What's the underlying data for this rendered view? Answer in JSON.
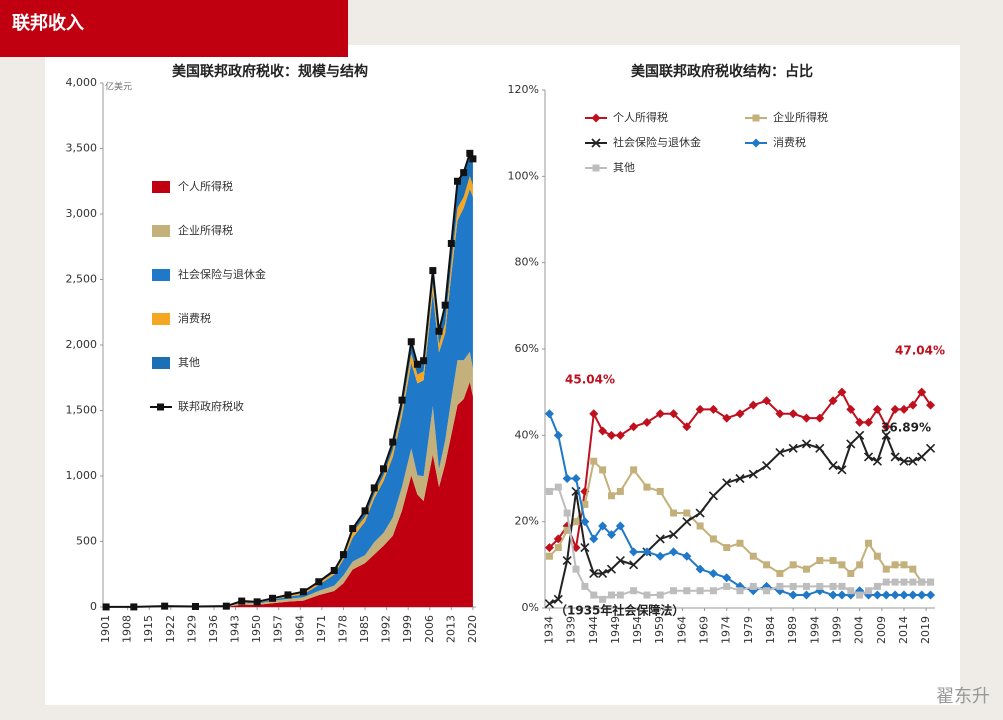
{
  "header": {
    "title": "联邦收入"
  },
  "watermark": "翟东升",
  "chart_data": [
    {
      "type": "area",
      "stacked": true,
      "title": "美国联邦政府税收：规模与结构",
      "unit": "亿美元",
      "x": [
        1901,
        1910,
        1920,
        1930,
        1940,
        1945,
        1950,
        1955,
        1960,
        1965,
        1970,
        1975,
        1978,
        1981,
        1985,
        1988,
        1991,
        1994,
        1997,
        2000,
        2002,
        2004,
        2007,
        2009,
        2011,
        2013,
        2015,
        2017,
        2019,
        2020
      ],
      "xlim": [
        1900,
        2021
      ],
      "xticks": [
        1901,
        1908,
        1915,
        1922,
        1929,
        1936,
        1943,
        1950,
        1957,
        1964,
        1971,
        1978,
        1985,
        1992,
        1999,
        2006,
        2013,
        2020
      ],
      "ylim": [
        0,
        4000
      ],
      "yticks": [
        0,
        500,
        {
          "value": 1000,
          "label": "1,000"
        },
        {
          "value": 1500,
          "label": "1,500"
        },
        {
          "value": 2000,
          "label": "2,000"
        },
        {
          "value": 2500,
          "label": "2,500"
        },
        {
          "value": 3000,
          "label": "3,000"
        },
        {
          "value": 3500,
          "label": "3,500"
        },
        {
          "value": 4000,
          "label": "4,000"
        }
      ],
      "grid": false,
      "series": [
        {
          "name": "个人所得税",
          "color": "#c00010",
          "values": [
            0,
            0,
            1.1,
            1.1,
            0.9,
            18.4,
            15.8,
            28.7,
            40.7,
            48.8,
            90.4,
            122.4,
            181,
            286,
            335,
            401,
            468,
            543,
            737,
            1004,
            858,
            809,
            1163,
            915,
            1091,
            1316,
            1541,
            1587,
            1718,
            1609
          ]
        },
        {
          "name": "企业所得税",
          "color": "#c4b07a",
          "values": [
            0,
            0,
            2.2,
            1.3,
            1.2,
            16.0,
            10.4,
            17.9,
            21.5,
            25.5,
            32.8,
            40.6,
            60,
            61,
            61,
            94,
            98,
            140,
            182,
            207,
            148,
            189,
            370,
            138,
            181,
            274,
            344,
            297,
            230,
            212
          ]
        },
        {
          "name": "社会保险与退休金",
          "color": "#1f78c8",
          "values": [
            0,
            0,
            0,
            0,
            1.8,
            3.5,
            4.3,
            9.7,
            16.4,
            22.2,
            44.4,
            84.5,
            123,
            183,
            255,
            334,
            396,
            461,
            539,
            653,
            701,
            733,
            870,
            891,
            819,
            948,
            1065,
            1162,
            1243,
            1310
          ]
        },
        {
          "name": "消费税",
          "color": "#f5a623",
          "values": [
            0.3,
            0.4,
            1.5,
            0.5,
            2.0,
            6.3,
            7.6,
            9.2,
            11.7,
            14.6,
            15.7,
            16.6,
            18,
            41,
            36,
            35,
            43,
            55,
            57,
            69,
            67,
            70,
            65,
            62,
            72,
            84,
            98,
            84,
            99,
            87
          ]
        },
        {
          "name": "其他",
          "color": "#1a6fb5",
          "values": [
            0.3,
            0.3,
            1.8,
            1.1,
            0.6,
            1.1,
            1.3,
            0.9,
            2.2,
            5.6,
            9.5,
            15.0,
            18,
            28,
            47,
            45,
            50,
            60,
            64,
            92,
            79,
            79,
            100,
            99,
            141,
            153,
            202,
            186,
            173,
            203
          ]
        }
      ],
      "total": {
        "name": "联邦政府税收",
        "color": "#111111",
        "values": [
          0.6,
          0.7,
          6.6,
          4.0,
          6.5,
          45.3,
          39.4,
          66.4,
          92.5,
          116.7,
          192.8,
          279.1,
          400,
          599,
          734,
          909,
          1055,
          1259,
          1579,
          2025,
          1853,
          1880,
          2568,
          2105,
          2304,
          2775,
          3250,
          3316,
          3463,
          3421
        ]
      }
    },
    {
      "type": "line",
      "title": "美国联邦政府税收结构：占比",
      "x": [
        1934,
        1936,
        1938,
        1940,
        1942,
        1944,
        1946,
        1948,
        1950,
        1953,
        1956,
        1959,
        1962,
        1965,
        1968,
        1971,
        1974,
        1977,
        1980,
        1983,
        1986,
        1989,
        1992,
        1995,
        1998,
        2000,
        2002,
        2004,
        2006,
        2008,
        2010,
        2012,
        2014,
        2016,
        2018,
        2020
      ],
      "xlim": [
        1933,
        2021
      ],
      "xticks": [
        1934,
        1939,
        1944,
        1949,
        1954,
        1959,
        1964,
        1969,
        1974,
        1979,
        1984,
        1989,
        1994,
        1999,
        2004,
        2009,
        2014,
        2019
      ],
      "ylim": [
        0,
        120
      ],
      "yticks": [
        {
          "value": 0,
          "label": "0%"
        },
        {
          "value": 20,
          "label": "20%"
        },
        {
          "value": 40,
          "label": "40%"
        },
        {
          "value": 60,
          "label": "60%"
        },
        {
          "value": 80,
          "label": "80%"
        },
        {
          "value": 100,
          "label": "100%"
        },
        {
          "value": 120,
          "label": "120%"
        }
      ],
      "series": [
        {
          "name": "个人所得税",
          "color": "#c0101e",
          "marker": "diamond",
          "values": [
            14,
            16,
            19,
            14,
            27,
            45,
            41,
            40,
            40,
            42,
            43,
            45,
            45,
            42,
            46,
            46,
            44,
            45,
            47,
            48,
            45,
            45,
            44,
            44,
            48,
            50,
            46,
            43,
            43,
            46,
            42,
            46,
            46,
            47,
            50,
            47
          ]
        },
        {
          "name": "企业所得税",
          "color": "#c4b07a",
          "marker": "square",
          "values": [
            12,
            14,
            18,
            20,
            24,
            34,
            32,
            26,
            27,
            32,
            28,
            27,
            22,
            22,
            19,
            16,
            14,
            15,
            12,
            10,
            8,
            10,
            9,
            11,
            11,
            10,
            8,
            10,
            15,
            12,
            9,
            10,
            10,
            9,
            6,
            6
          ]
        },
        {
          "name": "社会保险与退休金",
          "color": "#222222",
          "marker": "x",
          "values": [
            1,
            2,
            11,
            27,
            14,
            8,
            8,
            9,
            11,
            10,
            13,
            16,
            17,
            20,
            22,
            26,
            29,
            30,
            31,
            33,
            36,
            37,
            38,
            37,
            33,
            32,
            38,
            40,
            35,
            34,
            40,
            35,
            34,
            34,
            35,
            37
          ]
        },
        {
          "name": "消费税",
          "color": "#1f78c8",
          "marker": "diamond",
          "values": [
            45,
            40,
            30,
            30,
            20,
            16,
            19,
            17,
            19,
            13,
            13,
            12,
            13,
            12,
            9,
            8,
            7,
            5,
            4,
            5,
            4,
            3,
            3,
            4,
            3,
            3,
            3,
            4,
            3,
            3,
            3,
            3,
            3,
            3,
            3,
            3
          ]
        },
        {
          "name": "其他",
          "color": "#bdbdbd",
          "marker": "square",
          "values": [
            27,
            28,
            22,
            9,
            5,
            3,
            2,
            3,
            3,
            4,
            3,
            3,
            4,
            4,
            4,
            4,
            5,
            4,
            5,
            4,
            5,
            5,
            5,
            5,
            5,
            5,
            4,
            3,
            4,
            5,
            6,
            6,
            6,
            6,
            6,
            6
          ]
        }
      ],
      "annotations": [
        {
          "text": "45.04%",
          "color": "#c0101e"
        },
        {
          "text": "47.04%",
          "color": "#c0101e"
        },
        {
          "text": "36.89%",
          "color": "#222222"
        },
        {
          "text": "（1935年社会保障法）",
          "color": "#222222"
        }
      ]
    }
  ]
}
